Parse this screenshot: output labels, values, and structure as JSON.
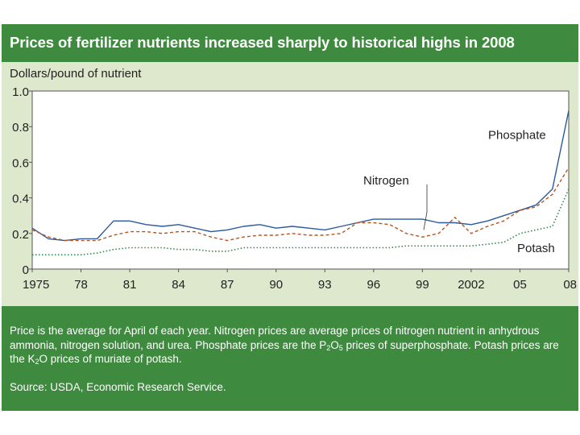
{
  "title": "Prices of fertilizer nutrients increased sharply to historical highs in 2008",
  "note": {
    "part1": "Price is the average for April of each year. Nitrogen prices are average prices of nitrogen nutrient in anhydrous ammonia, nitrogen solution, and urea. Phosphate prices are the P",
    "sub1": "2",
    "part2": "O",
    "sub2": "5",
    "part3": " prices of superphosphate. Potash prices are the K",
    "sub3": "2",
    "part4": "O prices of muriate of potash.",
    "source": "Source:  USDA, Economic Research Service."
  },
  "colors": {
    "green_band": "#3e8a3e",
    "plot_bg": "#dde8cc",
    "phosphate": "#2a5a9c",
    "nitrogen": "#b9541c",
    "potash": "#2e8a4a"
  },
  "chart_data": {
    "type": "line",
    "title": "Prices of fertilizer nutrients increased sharply to historical highs in 2008",
    "ylabel": "Dollars/pound of nutrient",
    "xlabel": "",
    "ylim": [
      0,
      1.0
    ],
    "xlim": [
      1975,
      2008
    ],
    "yticks": [
      0,
      0.2,
      0.4,
      0.6,
      0.8,
      1.0
    ],
    "ytick_labels": [
      "0",
      "0.2",
      "0.4",
      "0.6",
      "0.8",
      "1.0"
    ],
    "xticks": [
      1975,
      1978,
      1981,
      1984,
      1987,
      1990,
      1993,
      1996,
      1999,
      2002,
      2005,
      2008
    ],
    "xtick_labels": [
      "1975",
      "78",
      "81",
      "84",
      "87",
      "90",
      "93",
      "96",
      "99",
      "2002",
      "05",
      "08"
    ],
    "x": [
      1975,
      1976,
      1977,
      1978,
      1979,
      1980,
      1981,
      1982,
      1983,
      1984,
      1985,
      1986,
      1987,
      1988,
      1989,
      1990,
      1991,
      1992,
      1993,
      1994,
      1995,
      1996,
      1997,
      1998,
      1999,
      2000,
      2001,
      2002,
      2003,
      2004,
      2005,
      2006,
      2007,
      2008
    ],
    "series": [
      {
        "name": "Phosphate",
        "label": "Phosphate",
        "style": "solid",
        "values": [
          0.23,
          0.17,
          0.16,
          0.17,
          0.17,
          0.27,
          0.27,
          0.25,
          0.24,
          0.25,
          0.23,
          0.21,
          0.22,
          0.24,
          0.25,
          0.23,
          0.24,
          0.23,
          0.22,
          0.24,
          0.26,
          0.28,
          0.28,
          0.28,
          0.28,
          0.26,
          0.26,
          0.25,
          0.27,
          0.3,
          0.33,
          0.36,
          0.45,
          0.89
        ]
      },
      {
        "name": "Nitrogen",
        "label": "Nitrogen",
        "style": "dashed",
        "values": [
          0.22,
          0.18,
          0.16,
          0.16,
          0.16,
          0.19,
          0.21,
          0.21,
          0.2,
          0.21,
          0.21,
          0.18,
          0.16,
          0.18,
          0.19,
          0.19,
          0.2,
          0.19,
          0.19,
          0.2,
          0.26,
          0.26,
          0.25,
          0.2,
          0.18,
          0.2,
          0.29,
          0.2,
          0.24,
          0.27,
          0.33,
          0.35,
          0.42,
          0.57
        ]
      },
      {
        "name": "Potash",
        "label": "Potash",
        "style": "dotted",
        "values": [
          0.08,
          0.08,
          0.08,
          0.08,
          0.09,
          0.11,
          0.12,
          0.12,
          0.12,
          0.11,
          0.11,
          0.1,
          0.1,
          0.12,
          0.12,
          0.12,
          0.12,
          0.12,
          0.12,
          0.12,
          0.12,
          0.12,
          0.12,
          0.13,
          0.13,
          0.13,
          0.13,
          0.13,
          0.14,
          0.15,
          0.2,
          0.22,
          0.24,
          0.45
        ]
      }
    ]
  }
}
